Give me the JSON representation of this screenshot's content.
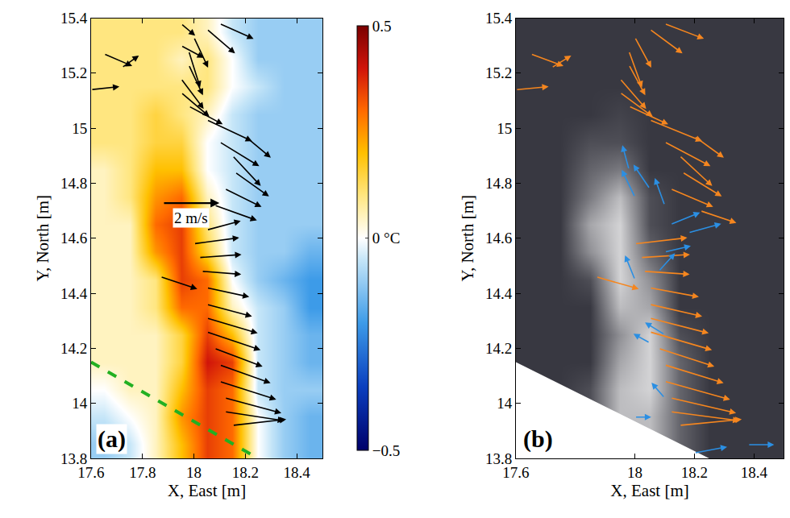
{
  "chart_data": [
    {
      "type": "heatmap",
      "panel": "(a)",
      "x_label": "X, East [m]",
      "y_label": "Y, North [m]",
      "xlim": [
        17.6,
        18.5
      ],
      "xticks": [
        17.6,
        17.8,
        18,
        18.2,
        18.4
      ],
      "ylim": [
        13.8,
        15.4
      ],
      "yticks": [
        13.8,
        14,
        14.2,
        14.4,
        14.6,
        14.8,
        15,
        15.2,
        15.4
      ],
      "grid": false,
      "cells": {
        "x": [
          17.65,
          17.75,
          17.85,
          17.95,
          18.05,
          18.15,
          18.25,
          18.35,
          18.45
        ],
        "y": [
          13.85,
          13.95,
          14.05,
          14.15,
          14.25,
          14.35,
          14.45,
          14.55,
          14.65,
          14.75,
          14.85,
          14.95,
          15.05,
          15.15,
          15.25,
          15.35
        ],
        "z": [
          [
            -0.1,
            -0.05,
            0.05,
            0.2,
            0.35,
            0.3,
            0.0,
            -0.1,
            -0.15
          ],
          [
            -0.05,
            0.0,
            0.05,
            0.25,
            0.35,
            0.3,
            0.0,
            -0.1,
            -0.15
          ],
          [
            0.0,
            0.05,
            0.05,
            0.2,
            0.35,
            0.3,
            -0.05,
            -0.1,
            -0.1
          ],
          [
            0.05,
            0.05,
            0.05,
            0.15,
            0.4,
            0.35,
            -0.05,
            -0.1,
            -0.15
          ],
          [
            0.05,
            0.05,
            0.05,
            0.15,
            0.35,
            0.2,
            -0.05,
            -0.1,
            -0.15
          ],
          [
            0.05,
            0.05,
            0.1,
            0.3,
            0.3,
            0.05,
            -0.05,
            -0.1,
            -0.2
          ],
          [
            0.05,
            0.05,
            0.1,
            0.35,
            0.3,
            0.0,
            -0.1,
            -0.15,
            -0.2
          ],
          [
            0.05,
            0.05,
            0.25,
            0.35,
            0.15,
            -0.05,
            -0.1,
            -0.1,
            -0.15
          ],
          [
            0.05,
            0.05,
            0.3,
            0.35,
            0.1,
            -0.05,
            -0.1,
            -0.1,
            -0.1
          ],
          [
            0.05,
            0.1,
            0.25,
            0.3,
            0.05,
            -0.05,
            -0.1,
            -0.1,
            -0.1
          ],
          [
            0.05,
            0.1,
            0.2,
            0.2,
            0.0,
            -0.05,
            -0.1,
            -0.1,
            -0.1
          ],
          [
            0.1,
            0.1,
            0.15,
            0.15,
            0.0,
            -0.05,
            -0.1,
            -0.1,
            -0.1
          ],
          [
            0.1,
            0.1,
            0.15,
            0.1,
            0.05,
            -0.05,
            -0.1,
            -0.1,
            -0.1
          ],
          [
            0.1,
            0.1,
            0.1,
            0.1,
            0.1,
            0.0,
            -0.05,
            -0.1,
            -0.1
          ],
          [
            0.1,
            0.1,
            0.1,
            0.05,
            0.1,
            0.0,
            -0.1,
            -0.1,
            -0.1
          ],
          [
            0.1,
            0.1,
            0.1,
            0.1,
            0.05,
            -0.05,
            -0.1,
            -0.1,
            -0.1
          ]
        ]
      },
      "colorbar": {
        "range": [
          -0.5,
          0.5
        ],
        "ticks": [
          {
            "value": -0.5,
            "label": "−0.5"
          },
          {
            "value": 0,
            "label": "0 °C"
          },
          0.5
        ]
      },
      "boundary": {
        "x": [
          17.6,
          18.25
        ],
        "y": [
          14.15,
          13.8
        ],
        "color": "#22b022",
        "line_style": "dashed"
      },
      "key": {
        "value": 2,
        "label": "2 m/s"
      },
      "series": [
        {
          "type": "quiver",
          "color": "#000000",
          "x": [
            18.15,
            18.12,
            18.12,
            18.1,
            18.1,
            18.08,
            18.05,
            18.05,
            18.05,
            18.05,
            18.03,
            18.02,
            18.0,
            18.05,
            17.87,
            18.08,
            18.12,
            18.16,
            18.15,
            18.1,
            18.05,
            18.2,
            17.98,
            17.95,
            17.95,
            17.98,
            17.98,
            18.0,
            18.05,
            18.1,
            17.95,
            17.95,
            17.6,
            17.65,
            17.72
          ],
          "y": [
            13.92,
            13.97,
            14.02,
            14.08,
            14.14,
            14.2,
            14.26,
            14.31,
            14.36,
            14.42,
            14.48,
            14.53,
            14.58,
            14.63,
            14.46,
            14.72,
            14.78,
            14.84,
            14.9,
            14.95,
            15.03,
            14.97,
            15.08,
            15.13,
            15.18,
            15.23,
            15.28,
            15.33,
            15.36,
            15.38,
            15.3,
            15.38,
            15.14,
            15.27,
            15.22
          ],
          "u": [
            1.9,
            2.1,
            2.0,
            2.0,
            1.8,
            1.7,
            1.9,
            1.8,
            1.6,
            1.5,
            1.4,
            1.5,
            1.6,
            1.2,
            1.3,
            1.5,
            1.3,
            1.2,
            1.0,
            1.4,
            1.6,
            0.9,
            1.2,
            1.0,
            0.8,
            0.5,
            0.4,
            0.5,
            1.0,
            1.2,
            0.8,
            0.5,
            1.0,
            1.0,
            0.6
          ],
          "v": [
            0.2,
            -0.3,
            -0.5,
            -0.6,
            -0.6,
            -0.6,
            -0.6,
            -0.5,
            -0.4,
            -0.3,
            -0.1,
            0.1,
            0.2,
            0.3,
            -0.4,
            -0.5,
            -0.6,
            -0.8,
            -1.0,
            -0.8,
            -0.7,
            -0.7,
            -0.6,
            -0.8,
            -1.0,
            -1.0,
            -1.2,
            -1.0,
            -0.8,
            -0.5,
            -0.4,
            -0.4,
            0.1,
            -0.4,
            0.4
          ]
        }
      ]
    },
    {
      "type": "heatmap",
      "panel": "(b)",
      "x_label": "X, East [m]",
      "y_label": "Y, North [m]",
      "xlim": [
        17.6,
        18.5
      ],
      "xticks": [
        17.6,
        18,
        18.2,
        18.4
      ],
      "ylim": [
        13.8,
        15.4
      ],
      "yticks": [
        13.8,
        14,
        14.2,
        14.4,
        14.6,
        14.8,
        15,
        15.2,
        15.4
      ],
      "grid": false,
      "zlim": [
        0,
        1
      ],
      "cells": {
        "x": [
          17.65,
          17.75,
          17.85,
          17.95,
          18.05,
          18.15,
          18.25,
          18.35,
          18.45
        ],
        "y": [
          13.85,
          13.95,
          14.05,
          14.15,
          14.25,
          14.35,
          14.45,
          14.55,
          14.65,
          14.75,
          14.85,
          14.95,
          15.05,
          15.15,
          15.25,
          15.35
        ],
        "z": [
          [
            0.1,
            0.1,
            0.1,
            0.6,
            0.7,
            0.3,
            0.1,
            0.1,
            0.1
          ],
          [
            0.1,
            0.1,
            0.2,
            0.7,
            0.7,
            0.3,
            0.1,
            0.1,
            0.1
          ],
          [
            0.1,
            0.1,
            0.2,
            0.7,
            0.8,
            0.3,
            0.1,
            0.1,
            0.1
          ],
          [
            0.1,
            0.1,
            0.1,
            0.6,
            0.8,
            0.3,
            0.1,
            0.1,
            0.1
          ],
          [
            0.1,
            0.1,
            0.1,
            0.5,
            0.8,
            0.2,
            0.1,
            0.1,
            0.1
          ],
          [
            0.1,
            0.1,
            0.1,
            0.7,
            0.6,
            0.1,
            0.1,
            0.1,
            0.1
          ],
          [
            0.1,
            0.1,
            0.2,
            0.8,
            0.5,
            0.1,
            0.1,
            0.1,
            0.1
          ],
          [
            0.1,
            0.1,
            0.5,
            0.8,
            0.3,
            0.1,
            0.1,
            0.1,
            0.1
          ],
          [
            0.1,
            0.1,
            0.6,
            0.8,
            0.2,
            0.1,
            0.1,
            0.1,
            0.1
          ],
          [
            0.1,
            0.1,
            0.4,
            0.7,
            0.2,
            0.1,
            0.1,
            0.1,
            0.1
          ],
          [
            0.1,
            0.1,
            0.3,
            0.4,
            0.1,
            0.1,
            0.1,
            0.1,
            0.1
          ],
          [
            0.1,
            0.1,
            0.2,
            0.2,
            0.1,
            0.1,
            0.1,
            0.1,
            0.1
          ],
          [
            0.1,
            0.1,
            0.1,
            0.15,
            0.1,
            0.1,
            0.1,
            0.1,
            0.1
          ],
          [
            0.1,
            0.1,
            0.1,
            0.1,
            0.1,
            0.1,
            0.1,
            0.1,
            0.1
          ],
          [
            0.1,
            0.1,
            0.1,
            0.1,
            0.1,
            0.1,
            0.1,
            0.1,
            0.1
          ],
          [
            0.1,
            0.1,
            0.1,
            0.1,
            0.1,
            0.1,
            0.1,
            0.1,
            0.1
          ]
        ]
      },
      "boundary": {
        "x": [
          17.6,
          18.25
        ],
        "y": [
          14.15,
          13.8
        ],
        "color": "#ffffff"
      },
      "series": [
        {
          "type": "quiver",
          "color": "#f5861f",
          "x": [
            18.15,
            18.12,
            18.12,
            18.1,
            18.1,
            18.08,
            18.05,
            18.05,
            18.05,
            18.05,
            18.03,
            18.02,
            18.0,
            17.87,
            18.12,
            18.16,
            18.15,
            18.1,
            18.05,
            18.2,
            17.98,
            17.95,
            17.95,
            17.98,
            17.98,
            18.0,
            18.05,
            18.1,
            17.6,
            17.65,
            17.72,
            18.22
          ],
          "y": [
            13.92,
            13.97,
            14.02,
            14.08,
            14.14,
            14.2,
            14.26,
            14.31,
            14.36,
            14.42,
            14.48,
            14.53,
            14.58,
            14.46,
            14.78,
            14.84,
            14.9,
            14.95,
            15.03,
            14.97,
            15.08,
            15.13,
            15.18,
            15.23,
            15.28,
            15.33,
            15.36,
            15.38,
            15.14,
            15.27,
            15.22,
            14.7
          ],
          "u": [
            1.9,
            2.1,
            2.0,
            2.0,
            1.8,
            1.7,
            1.9,
            1.8,
            1.6,
            1.5,
            1.4,
            1.5,
            1.6,
            1.3,
            1.3,
            1.2,
            1.0,
            1.4,
            1.6,
            0.9,
            1.2,
            1.0,
            0.8,
            0.5,
            0.4,
            0.5,
            1.0,
            1.2,
            1.0,
            1.0,
            0.6,
            1.1
          ],
          "v": [
            0.2,
            -0.3,
            -0.5,
            -0.6,
            -0.6,
            -0.6,
            -0.6,
            -0.5,
            -0.4,
            -0.3,
            -0.1,
            0.1,
            0.2,
            -0.4,
            -0.6,
            -0.8,
            -1.0,
            -0.8,
            -0.7,
            -0.7,
            -0.6,
            -0.8,
            -1.0,
            -1.0,
            -1.2,
            -1.0,
            -0.8,
            -0.5,
            0.1,
            -0.4,
            0.4,
            -0.4
          ]
        },
        {
          "type": "quiver",
          "color": "#2b8fe3",
          "x": [
            18.0,
            17.98,
            18.05,
            18.1,
            18.12,
            18.18,
            18.1,
            18.08,
            18.0,
            18.05,
            18.1,
            18.0,
            18.2,
            18.38,
            18.1
          ],
          "y": [
            14.75,
            14.85,
            14.78,
            14.72,
            14.65,
            14.62,
            14.55,
            14.48,
            14.45,
            14.22,
            14.25,
            13.95,
            13.82,
            13.85,
            14.02
          ],
          "u": [
            -0.4,
            -0.2,
            -0.5,
            -0.3,
            0.9,
            1.0,
            0.8,
            0.5,
            -0.3,
            -0.5,
            -0.6,
            0.5,
            1.0,
            0.8,
            -0.4
          ],
          "v": [
            0.9,
            0.8,
            0.8,
            0.9,
            0.4,
            0.3,
            0.2,
            0.6,
            0.8,
            0.3,
            0.4,
            0.0,
            0.2,
            0.0,
            0.5
          ]
        }
      ]
    }
  ]
}
